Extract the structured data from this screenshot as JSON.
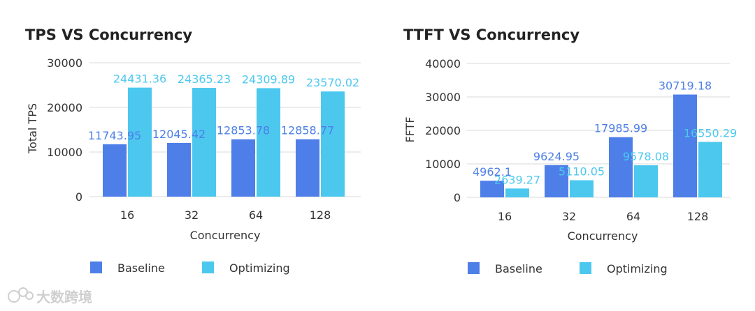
{
  "colors": {
    "baseline": "#4e7fe8",
    "optimizing": "#4cc8ef",
    "grid": "#d9d9d9"
  },
  "watermark": {
    "text": "大数跨境",
    "icon": "logo-icon"
  },
  "chart_data": [
    {
      "type": "bar",
      "title": "TPS VS Concurrency",
      "xlabel": "Concurrency",
      "ylabel": "Total TPS",
      "categories": [
        "16",
        "32",
        "64",
        "128"
      ],
      "yticks": [
        "30000",
        "20000",
        "10000",
        "0"
      ],
      "ylim": [
        0,
        30000
      ],
      "grid": true,
      "legend_position": "bottom",
      "series": [
        {
          "name": "Baseline",
          "values": [
            11743.95,
            12045.42,
            12853.78,
            12858.77
          ],
          "labels": [
            "11743.95",
            "12045.42",
            "12853.78",
            "12858.77"
          ]
        },
        {
          "name": "Optimizing",
          "values": [
            24431.36,
            24365.23,
            24309.89,
            23570.02
          ],
          "labels": [
            "24431.36",
            "24365.23",
            "24309.89",
            "23570.02"
          ]
        }
      ]
    },
    {
      "type": "bar",
      "title": "TTFT VS Concurrency",
      "xlabel": "Concurrency",
      "ylabel": "FFTF",
      "categories": [
        "16",
        "32",
        "64",
        "128"
      ],
      "yticks": [
        "40000",
        "30000",
        "20000",
        "10000",
        "0"
      ],
      "ylim": [
        0,
        40000
      ],
      "grid": true,
      "legend_position": "bottom",
      "series": [
        {
          "name": "Baseline",
          "values": [
            4962.1,
            9624.95,
            17985.99,
            30719.18
          ],
          "labels": [
            "4962.1",
            "9624.95",
            "17985.99",
            "30719.18"
          ]
        },
        {
          "name": "Optimizing",
          "values": [
            2639.27,
            5110.05,
            9578.08,
            16550.29
          ],
          "labels": [
            "2639.27",
            "5110.05",
            "9578.08",
            "16550.29"
          ]
        }
      ]
    }
  ]
}
